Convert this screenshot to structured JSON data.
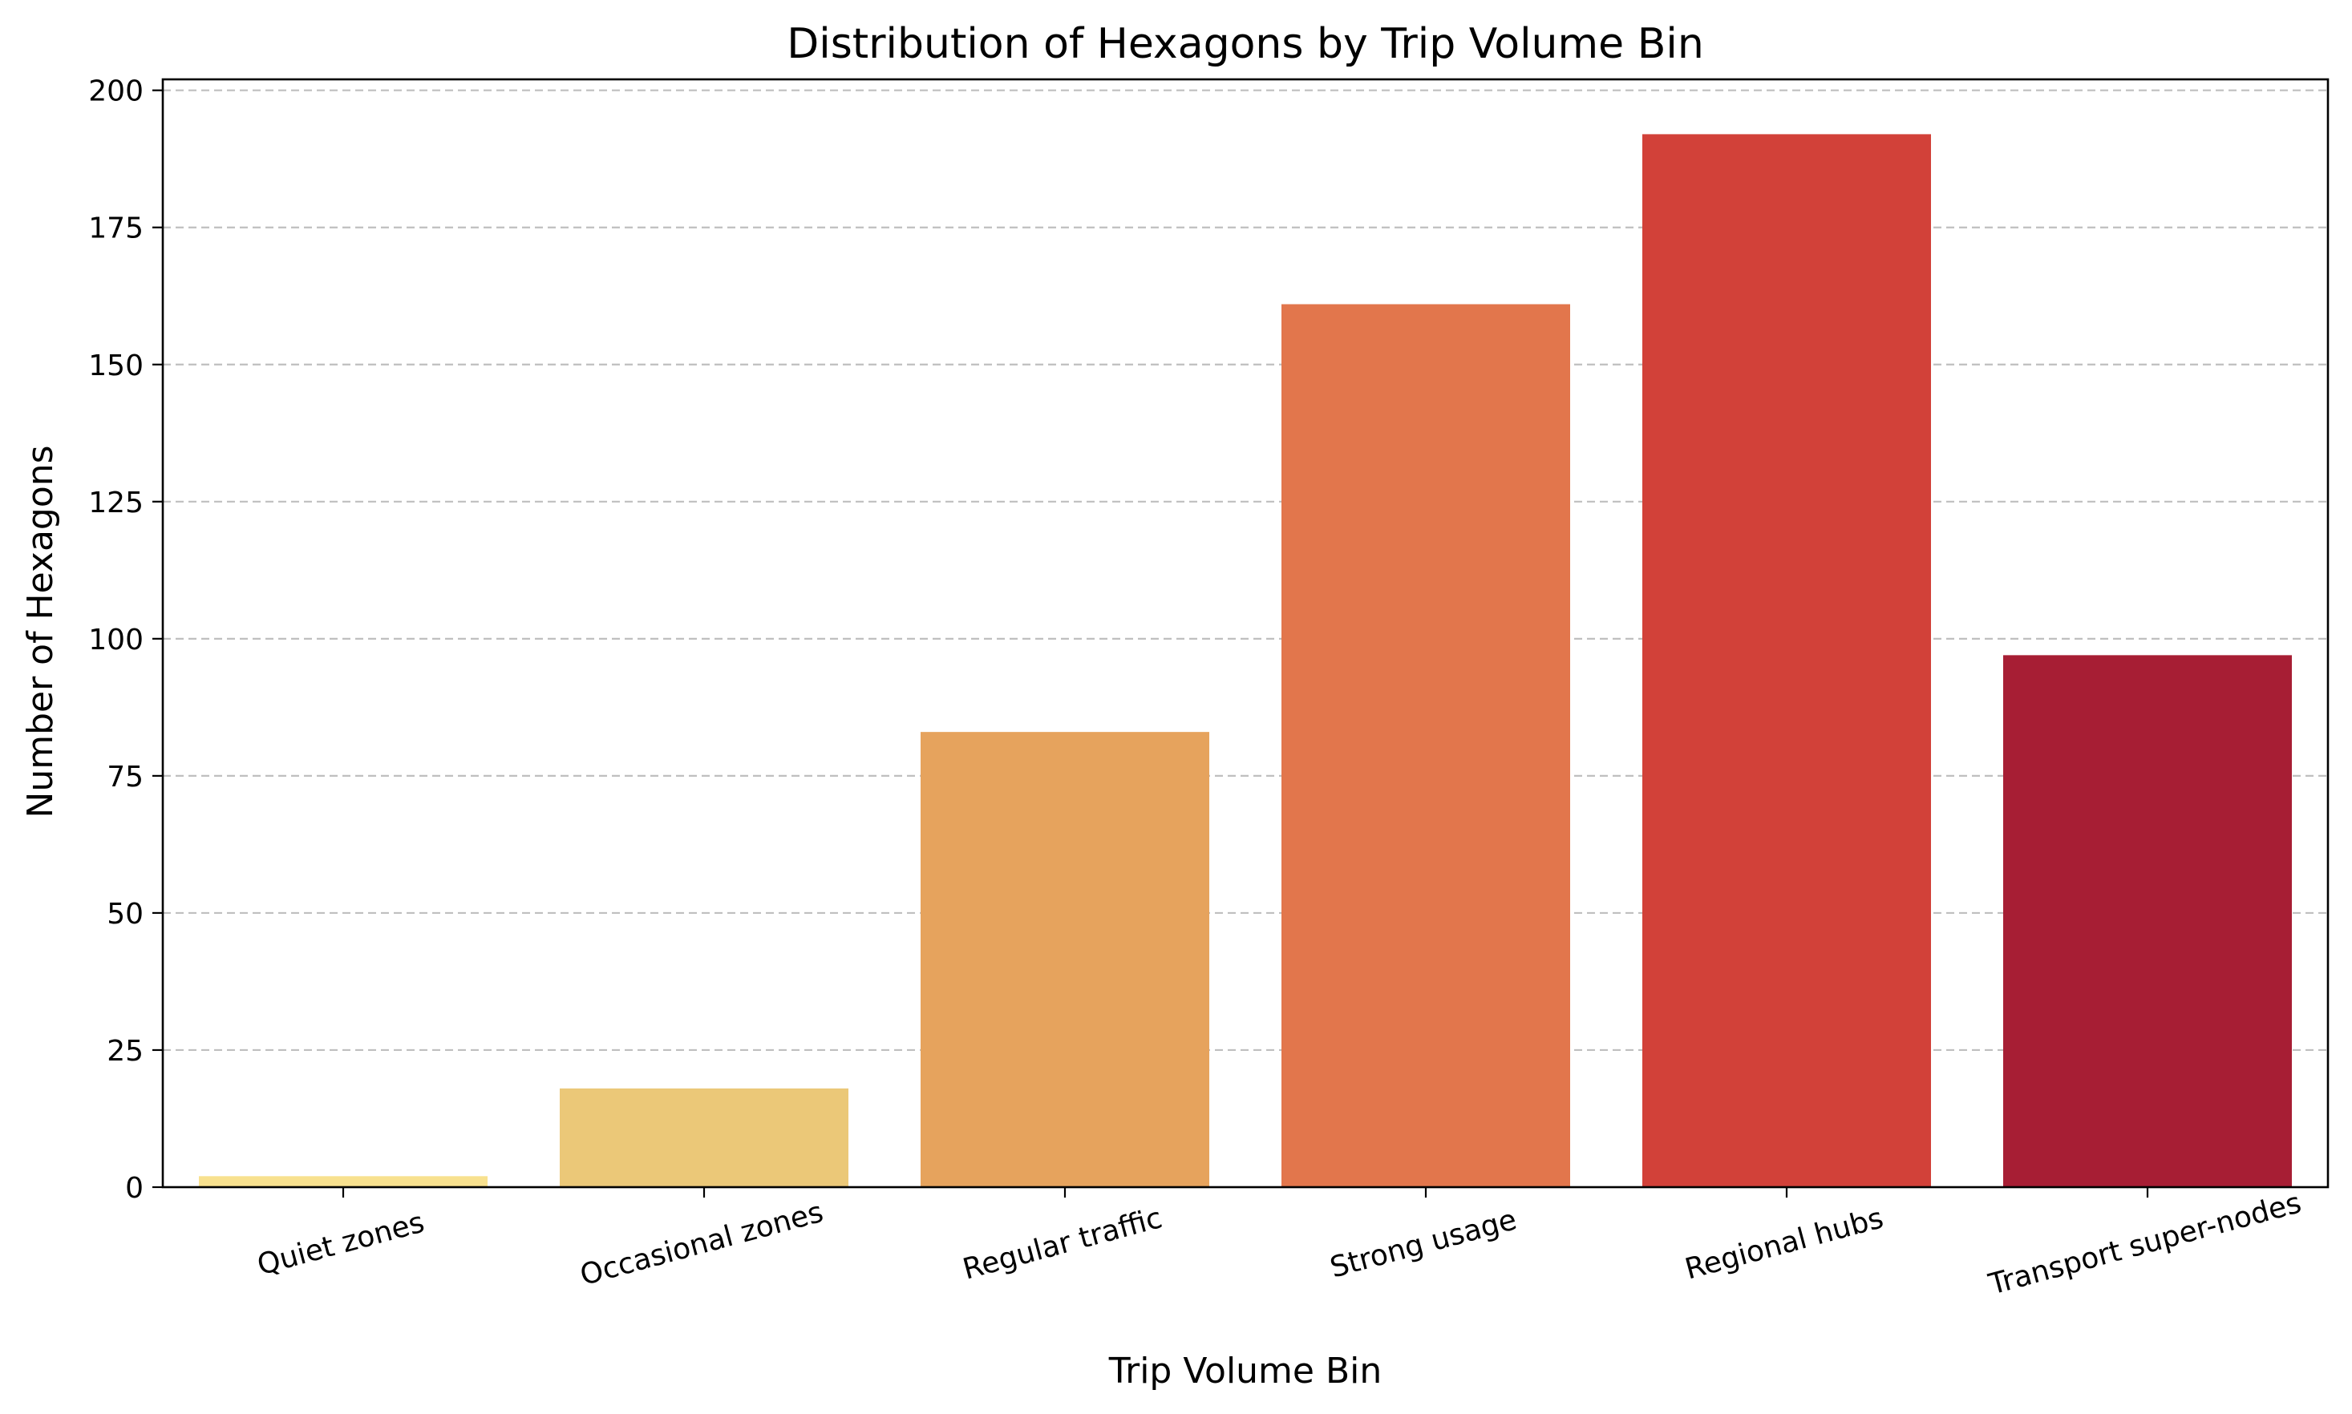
{
  "chart_data": {
    "type": "bar",
    "title": "Distribution of Hexagons by Trip Volume Bin",
    "xlabel": "Trip Volume Bin",
    "ylabel": "Number of Hexagons",
    "categories": [
      "Quiet zones",
      "Occasional zones",
      "Regular traffic",
      "Strong usage",
      "Regional hubs",
      "Transport super-nodes"
    ],
    "values": [
      2,
      18,
      83,
      161,
      192,
      97
    ],
    "colors": [
      "#f8e18f",
      "#ebc878",
      "#e6a35d",
      "#e2764c",
      "#d24139",
      "#a71e34"
    ],
    "ylim": [
      0,
      202
    ],
    "yticks": [
      0,
      25,
      50,
      75,
      100,
      125,
      150,
      175,
      200
    ],
    "grid": "horizontal-dashed",
    "legend": "none"
  }
}
